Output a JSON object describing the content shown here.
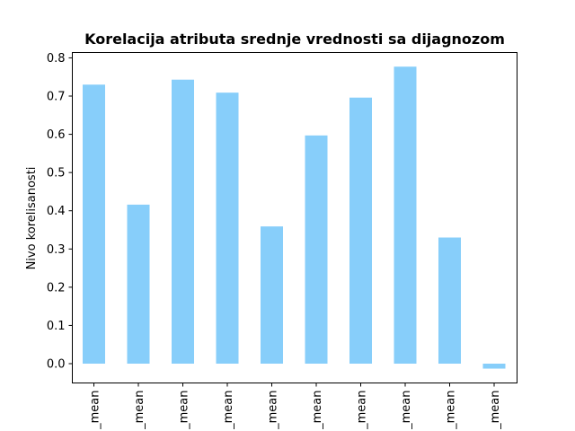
{
  "chart_data": {
    "type": "bar",
    "title": "Korelacija atributa srednje vrednosti sa dijagnozom",
    "xlabel": "",
    "ylabel": "Nivo korelisanosti",
    "categories": [
      "_mean",
      "_mean",
      "_mean",
      "_mean",
      "_mean",
      "_mean",
      "_mean",
      "_mean",
      "_mean",
      "_mean"
    ],
    "values": [
      0.73,
      0.416,
      0.743,
      0.709,
      0.359,
      0.597,
      0.696,
      0.777,
      0.33,
      -0.013
    ],
    "ylim": [
      -0.05,
      0.82
    ],
    "yticks": [
      "0.0",
      "0.1",
      "0.2",
      "0.3",
      "0.4",
      "0.5",
      "0.6",
      "0.7",
      "0.8"
    ],
    "bar_color": "#87CEFA",
    "grid": false,
    "legend": null
  }
}
